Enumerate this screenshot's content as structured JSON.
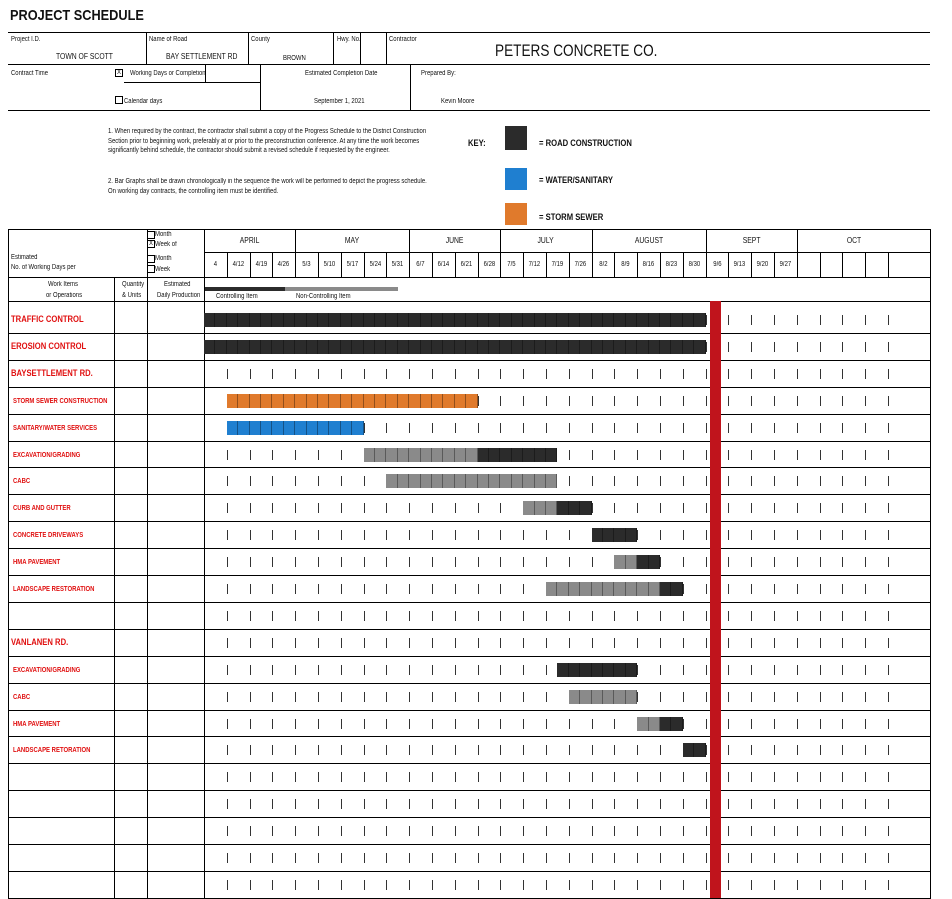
{
  "header": {
    "title": "PROJECT SCHEDULE",
    "project_id_label": "Project I.D.",
    "project_id": "TOWN OF SCOTT",
    "road_label": "Name of Road",
    "road": "BAY SETTLEMENT RD",
    "county_label": "County",
    "county": "BROWN",
    "hwy_label": "Hwy. No.",
    "contractor_label": "Contractor",
    "contractor": "PETERS CONCRETE CO.",
    "contract_time_label": "Contract Time",
    "working_days_label": "Working Days or Completion",
    "working_days_checked": "X",
    "calendar_days_label": "Calendar days",
    "est_completion_label": "Estimated Completion Date",
    "est_completion": "September 1, 2021",
    "prepared_by_label": "Prepared By:",
    "prepared_by": "Kevin Moore"
  },
  "notes": {
    "note1": "1. When required by the contract, the contractor shall submit a copy of the Progress Schedule to the District Construction Section prior to beginning work, preferably at or prior to the preconstruction conference.   At any time the work becomes significantly behind schedule, the contractor should submit a revised schedule if requested by the engineer.",
    "note2": "2. Bar Graphs shall be drawn chronologically in the sequence the work will be performed to depict the progress schedule.  On working day contracts, the controlling item must be identified."
  },
  "key": {
    "label": "KEY:",
    "items": [
      {
        "label": "= ROAD CONSTRUCTION",
        "color": "#2b2b2b"
      },
      {
        "label": "= WATER/SANITARY",
        "color": "#1f7fd0"
      },
      {
        "label": "= STORM SEWER",
        "color": "#e07a2c"
      }
    ]
  },
  "grid_header": {
    "month_label": "Month",
    "week_of_label": "Week of",
    "week_of_checked": "X",
    "estimated_label": "Estimated",
    "no_days_label": "No. of Working Days per",
    "month_label2": "Month",
    "week_label2": "Week",
    "work_items_label": "Work Items",
    "or_operations_label": "or Operations",
    "quantity_label": "Quantity",
    "units_label": "& Units",
    "est_label": "Estimated",
    "daily_prod_label": "Daily Production",
    "controlling_label": "Controlling Item",
    "non_controlling_label": "Non-Controlling Item",
    "months": [
      "APRIL",
      "MAY",
      "JUNE",
      "JULY",
      "AUGUST",
      "SEPT",
      "OCT"
    ],
    "dates": [
      "4",
      "4/12",
      "4/19",
      "4/26",
      "5/3",
      "5/10",
      "5/17",
      "5/24",
      "5/31",
      "6/7",
      "6/14",
      "6/21",
      "6/28",
      "7/5",
      "7/12",
      "7/19",
      "7/26",
      "8/2",
      "8/9",
      "8/16",
      "8/23",
      "8/30",
      "9/6",
      "9/13",
      "9/20",
      "9/27",
      "",
      "",
      "",
      "",
      ""
    ]
  },
  "rows": [
    {
      "label": "TRAFFIC CONTROL",
      "style": "big",
      "bars": [
        {
          "start": 0,
          "end": 22,
          "color": "#2b2b2b"
        }
      ]
    },
    {
      "label": "EROSION CONTROL",
      "style": "big",
      "bars": [
        {
          "start": 0,
          "end": 22,
          "color": "#2b2b2b"
        }
      ]
    },
    {
      "label": "BAYSETTLEMENT RD.",
      "style": "big",
      "bars": []
    },
    {
      "label": "STORM SEWER CONSTRUCTION",
      "style": "small",
      "bars": [
        {
          "start": 1,
          "end": 12,
          "color": "#e07a2c"
        }
      ]
    },
    {
      "label": "SANITARY/WATER SERVICES",
      "style": "small",
      "bars": [
        {
          "start": 1,
          "end": 7,
          "color": "#1f7fd0"
        }
      ]
    },
    {
      "label": "EXCAVATION/GRADING",
      "style": "small",
      "bars": [
        {
          "start": 7,
          "end": 12,
          "color": "#8a8a8a"
        },
        {
          "start": 12,
          "end": 15.5,
          "color": "#2b2b2b"
        }
      ]
    },
    {
      "label": "CABC",
      "style": "small",
      "bars": [
        {
          "start": 8,
          "end": 15.5,
          "color": "#8a8a8a"
        }
      ]
    },
    {
      "label": "CURB AND GUTTER",
      "style": "small",
      "bars": [
        {
          "start": 14,
          "end": 15.5,
          "color": "#8a8a8a"
        },
        {
          "start": 15.5,
          "end": 17,
          "color": "#2b2b2b"
        }
      ]
    },
    {
      "label": "CONCRETE DRIVEWAYS",
      "style": "small",
      "bars": [
        {
          "start": 17,
          "end": 19,
          "color": "#2b2b2b"
        }
      ]
    },
    {
      "label": "HMA PAVEMENT",
      "style": "small",
      "bars": [
        {
          "start": 18,
          "end": 19,
          "color": "#8a8a8a"
        },
        {
          "start": 19,
          "end": 20,
          "color": "#2b2b2b"
        }
      ]
    },
    {
      "label": "LANDSCAPE RESTORATION",
      "style": "small",
      "bars": [
        {
          "start": 15,
          "end": 20,
          "color": "#8a8a8a"
        },
        {
          "start": 20,
          "end": 21,
          "color": "#2b2b2b"
        }
      ]
    },
    {
      "label": "",
      "style": "small",
      "bars": []
    },
    {
      "label": "VANLANEN RD.",
      "style": "big",
      "bars": []
    },
    {
      "label": "EXCAVATION/GRADING",
      "style": "small",
      "bars": [
        {
          "start": 15.5,
          "end": 19,
          "color": "#2b2b2b"
        }
      ]
    },
    {
      "label": "CABC",
      "style": "small",
      "bars": [
        {
          "start": 16,
          "end": 19,
          "color": "#8a8a8a"
        }
      ]
    },
    {
      "label": "HMA PAVEMENT",
      "style": "small",
      "bars": [
        {
          "start": 19,
          "end": 20,
          "color": "#8a8a8a"
        },
        {
          "start": 20,
          "end": 21,
          "color": "#2b2b2b"
        }
      ]
    },
    {
      "label": "LANDSCAPE RETORATION",
      "style": "small",
      "bars": [
        {
          "start": 21,
          "end": 22,
          "color": "#2b2b2b"
        }
      ]
    },
    {
      "label": "",
      "style": "small",
      "bars": []
    },
    {
      "label": "",
      "style": "small",
      "bars": []
    },
    {
      "label": "",
      "style": "small",
      "bars": []
    },
    {
      "label": "",
      "style": "small",
      "bars": []
    },
    {
      "label": "",
      "style": "small",
      "bars": []
    }
  ],
  "completion_marker": {
    "week": 22.2,
    "color": "#c0141c"
  }
}
